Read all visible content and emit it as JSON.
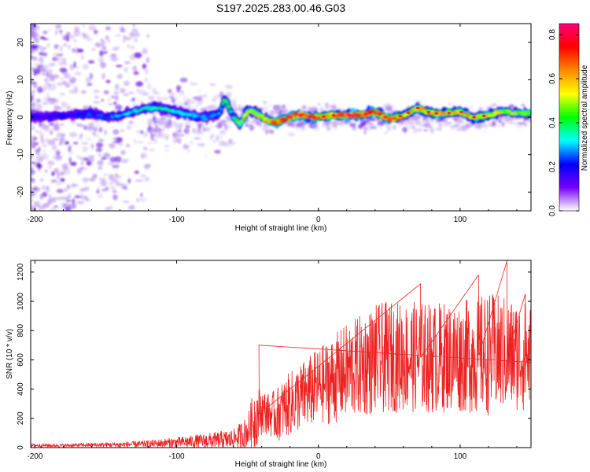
{
  "title": "S197.2025.283.00.46.G03",
  "colors": {
    "trace": "#ee2222",
    "noise": "#b894ee",
    "band_low": "#5a00e0",
    "band_mid": "#00e0ff",
    "band_high": "#ff2a2a",
    "axis": "#000000"
  },
  "chart_data": [
    {
      "type": "heatmap",
      "title": "S197.2025.283.00.46.G03",
      "xlabel": "Height of straight line (km)",
      "ylabel": "Frequency (Hz)",
      "xlim": [
        -203,
        150
      ],
      "ylim": [
        -25,
        25
      ],
      "xticks": [
        -200,
        -100,
        0,
        100
      ],
      "yticks": [
        -20,
        -10,
        0,
        10,
        20
      ],
      "colorbar": {
        "label": "Normalized spectral amplitude",
        "range": [
          0.0,
          0.85
        ],
        "ticks": [
          "0.0",
          "0.2",
          "0.4",
          "0.6",
          "0.8"
        ],
        "tick_values": [
          0.0,
          0.2,
          0.4,
          0.6,
          0.8
        ],
        "colors": [
          "#ffffff",
          "#7700ff",
          "#0000ff",
          "#00ffff",
          "#00ff00",
          "#ffff00",
          "#ff8800",
          "#ff0000",
          "#ff0077"
        ]
      },
      "ridge": {
        "x": [
          -200,
          -180,
          -160,
          -150,
          -140,
          -130,
          -120,
          -110,
          -100,
          -90,
          -80,
          -70,
          -66,
          -60,
          -55,
          -50,
          -45,
          -40,
          -35,
          -30,
          -25,
          -20,
          -15,
          -10,
          -5,
          0,
          10,
          20,
          30,
          40,
          50,
          60,
          70,
          80,
          90,
          100,
          110,
          120,
          130,
          140,
          150
        ],
        "y": [
          0,
          0.5,
          1,
          0,
          0.5,
          1.5,
          2.5,
          2.5,
          1.5,
          0.5,
          0,
          1,
          5,
          0,
          -2,
          2,
          1.5,
          0,
          -1,
          -1.5,
          -0.5,
          0,
          0.5,
          0.5,
          0,
          0,
          0.5,
          0.5,
          0.5,
          1.5,
          -0.5,
          0.5,
          2.5,
          1,
          1,
          1.5,
          0,
          0.5,
          1.5,
          1,
          1
        ],
        "amplitude": [
          0.2,
          0.2,
          0.25,
          0.25,
          0.3,
          0.35,
          0.4,
          0.4,
          0.35,
          0.35,
          0.3,
          0.3,
          0.45,
          0.4,
          0.45,
          0.5,
          0.55,
          0.6,
          0.7,
          0.8,
          0.75,
          0.8,
          0.85,
          0.8,
          0.8,
          0.7,
          0.75,
          0.8,
          0.8,
          0.75,
          0.8,
          0.7,
          0.6,
          0.65,
          0.6,
          0.65,
          0.6,
          0.6,
          0.55,
          0.55,
          0.5
        ]
      }
    },
    {
      "type": "line",
      "xlabel": "Height of straight line (km)",
      "ylabel": "SNR (10 * v/v)",
      "xlim": [
        -203,
        150
      ],
      "ylim": [
        0,
        1280
      ],
      "xticks": [
        -200,
        -100,
        0,
        100
      ],
      "yticks": [
        0,
        200,
        400,
        600,
        800,
        1000,
        1200
      ],
      "envelope": {
        "x": [
          -203,
          -180,
          -160,
          -140,
          -120,
          -100,
          -80,
          -70,
          -60,
          -50,
          -45,
          -40,
          -35,
          -30,
          -20,
          -10,
          0,
          10,
          20,
          30,
          40,
          50,
          60,
          70,
          80,
          90,
          100,
          110,
          120,
          130,
          140,
          150
        ],
        "mean": [
          15,
          15,
          18,
          20,
          25,
          35,
          45,
          50,
          55,
          110,
          200,
          250,
          230,
          220,
          300,
          360,
          420,
          460,
          520,
          560,
          600,
          620,
          620,
          620,
          610,
          620,
          620,
          630,
          640,
          640,
          630,
          620
        ],
        "spread": [
          12,
          12,
          14,
          18,
          25,
          35,
          50,
          60,
          70,
          110,
          220,
          160,
          140,
          180,
          220,
          240,
          260,
          300,
          330,
          350,
          380,
          380,
          380,
          380,
          380,
          380,
          380,
          400,
          420,
          400,
          380,
          380
        ],
        "peaks": [
          [
            -42,
            700
          ],
          [
            72,
            1120
          ],
          [
            113,
            1180
          ],
          [
            133,
            1275
          ],
          [
            146,
            1050
          ]
        ]
      }
    }
  ]
}
